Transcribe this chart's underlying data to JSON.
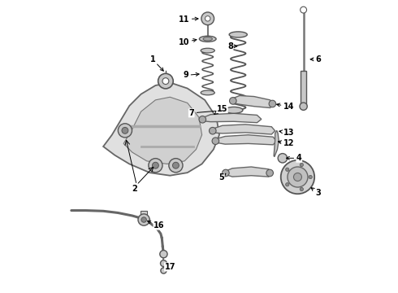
{
  "background_color": "#ffffff",
  "fig_width": 4.9,
  "fig_height": 3.6,
  "dpi": 100,
  "part_label_fontsize": 7.0
}
